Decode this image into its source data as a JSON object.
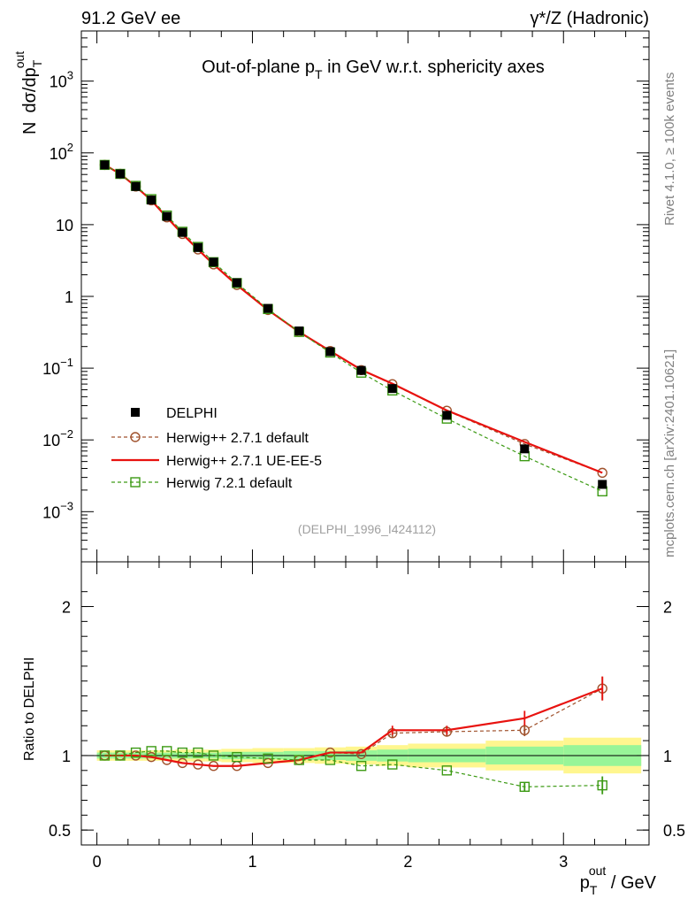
{
  "header": {
    "left": "91.2 GeV ee",
    "right": "γ*/Z (Hadronic)"
  },
  "side": {
    "rivet": "Rivet 4.1.0, ≥ 100k events",
    "mcplots": "mcplots.cern.ch [arXiv:2401.10621]"
  },
  "chart_data": {
    "type": "line",
    "title": "Out-of-plane pT in GeV w.r.t. sphericity axes",
    "title_main": "Out-of-plane p",
    "title_sub": "T",
    "title_rest": " in GeV w.r.t. sphericity axes",
    "analysis_id": "(DELPHI_1996_I424112)",
    "ylabel": "N  dσ/dp_T^out",
    "ylabel_parts": {
      "n": "N",
      "main": "dσ/dp",
      "sup": "out",
      "sub": "T"
    },
    "xlabel": "p_T^out / GeV",
    "xlabel_parts": {
      "main": "p",
      "sup": "out",
      "sub": "T",
      "rest": " / GeV"
    },
    "ratio_ylabel": "Ratio to DELPHI",
    "xlim": [
      -0.1,
      3.55
    ],
    "ylim_log": [
      0.0002,
      5000
    ],
    "ratio_ylim": [
      0.4,
      2.3
    ],
    "x_ticks": [
      0,
      1,
      2,
      3
    ],
    "x_tick_labels": [
      "0",
      "1",
      "2",
      "3"
    ],
    "y_ticks": [
      {
        "value": 1000,
        "base": "10",
        "exp": "3"
      },
      {
        "value": 100,
        "base": "10",
        "exp": "2"
      },
      {
        "value": 10,
        "base": "10",
        "exp": ""
      },
      {
        "value": 1,
        "base": "1",
        "exp": ""
      },
      {
        "value": 0.1,
        "base": "10",
        "exp": "−1"
      },
      {
        "value": 0.01,
        "base": "10",
        "exp": "−2"
      },
      {
        "value": 0.001,
        "base": "10",
        "exp": "−3"
      }
    ],
    "ratio_ticks": [
      {
        "value": 2,
        "label": "2"
      },
      {
        "value": 1,
        "label": "1"
      },
      {
        "value": 0.5,
        "label": "0.5"
      }
    ],
    "x": [
      0.05,
      0.15,
      0.25,
      0.35,
      0.45,
      0.55,
      0.65,
      0.75,
      0.9,
      1.1,
      1.3,
      1.5,
      1.7,
      1.9,
      2.25,
      2.75,
      3.25
    ],
    "bin_edges": [
      0.0,
      0.1,
      0.2,
      0.3,
      0.4,
      0.5,
      0.6,
      0.7,
      0.8,
      1.0,
      1.2,
      1.4,
      1.6,
      1.8,
      2.0,
      2.5,
      3.0,
      3.5
    ],
    "band_yellow_halfwidth": [
      0.035,
      0.035,
      0.035,
      0.035,
      0.035,
      0.04,
      0.04,
      0.04,
      0.045,
      0.05,
      0.05,
      0.055,
      0.06,
      0.07,
      0.08,
      0.1,
      0.12
    ],
    "band_green_halfwidth": [
      0.02,
      0.02,
      0.02,
      0.02,
      0.02,
      0.02,
      0.02,
      0.02,
      0.025,
      0.025,
      0.03,
      0.03,
      0.035,
      0.04,
      0.045,
      0.06,
      0.07
    ],
    "series": [
      {
        "name": "DELPHI",
        "style": "data",
        "color": "#000000",
        "values": [
          68,
          51,
          34,
          22,
          13,
          7.8,
          4.8,
          3.0,
          1.55,
          0.68,
          0.33,
          0.17,
          0.093,
          0.052,
          0.022,
          0.0075,
          0.0024
        ]
      },
      {
        "name": "Herwig++ 2.7.1 default",
        "style": "circle-dashed",
        "color": "#a0522d",
        "ratio": [
          1.0,
          1.0,
          1.0,
          0.99,
          0.97,
          0.95,
          0.94,
          0.93,
          0.93,
          0.95,
          0.97,
          1.02,
          1.01,
          1.15,
          1.16,
          1.17,
          1.45
        ],
        "ratio_err": [
          0,
          0,
          0,
          0,
          0,
          0,
          0,
          0,
          0,
          0,
          0,
          0,
          0,
          0.03,
          0.03,
          0.04,
          0.08
        ]
      },
      {
        "name": "Herwig++ 2.7.1 UE-EE-5",
        "style": "solid",
        "color": "#e8120f",
        "ratio": [
          1.0,
          1.0,
          1.0,
          0.99,
          0.97,
          0.95,
          0.94,
          0.93,
          0.93,
          0.95,
          0.97,
          1.02,
          1.02,
          1.17,
          1.17,
          1.25,
          1.45
        ],
        "ratio_err": [
          0,
          0,
          0,
          0,
          0,
          0,
          0,
          0,
          0,
          0,
          0,
          0,
          0,
          0.03,
          0.03,
          0.05,
          0.08
        ]
      },
      {
        "name": "Herwig 7.2.1 default",
        "style": "square-dashed",
        "color": "#3c9a14",
        "ratio": [
          1.0,
          1.0,
          1.02,
          1.03,
          1.03,
          1.02,
          1.02,
          1.0,
          0.99,
          0.98,
          0.97,
          0.97,
          0.93,
          0.94,
          0.9,
          0.79,
          0.8
        ],
        "ratio_err": [
          0,
          0,
          0,
          0,
          0,
          0,
          0,
          0,
          0,
          0,
          0,
          0,
          0,
          0,
          0,
          0.03,
          0.06
        ]
      }
    ],
    "legend_position": "middle-left"
  },
  "colors": {
    "band_yellow": "#fff68f",
    "band_green": "#98f598",
    "axis": "#000000",
    "grey_text": "#808080"
  }
}
